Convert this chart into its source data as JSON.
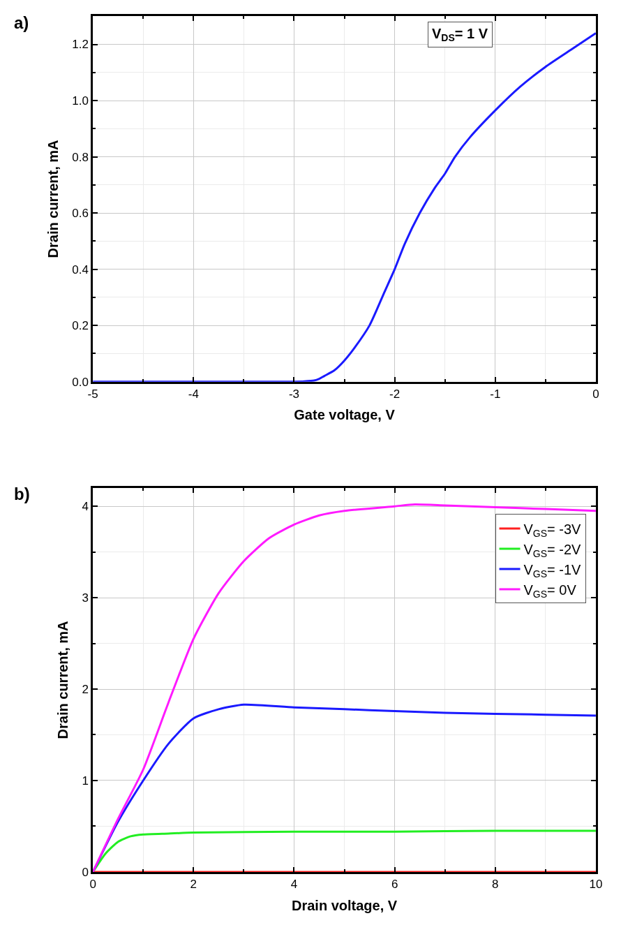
{
  "chart_data": [
    {
      "type": "line",
      "title": "a)",
      "xlabel": "Gate voltage, V",
      "ylabel": "Drain current, mA",
      "xlim": [
        -5,
        0
      ],
      "ylim": [
        0,
        1.3
      ],
      "xticks": [
        -5,
        -4,
        -3,
        -2,
        -1,
        0
      ],
      "yticks": [
        {
          "value": 0,
          "label": "0.0"
        },
        0.2,
        0.4,
        0.6,
        0.8,
        {
          "value": 1,
          "label": "1.0"
        },
        1.2
      ],
      "grid": true,
      "legend": false,
      "marker": "none",
      "line_style": "solid",
      "annotations": [
        "V$_{DS}$= 1 V"
      ],
      "series": [
        {
          "color": "#1a1aff",
          "x": [
            -5,
            -4,
            -3,
            -2.9,
            -2.8,
            -2.75,
            -2.7,
            -2.6,
            -2.5,
            -2.4,
            -2.25,
            -2.1,
            -2,
            -1.9,
            -1.75,
            -1.6,
            -1.5,
            -1.4,
            -1.25,
            -1,
            -0.75,
            -0.5,
            -0.25,
            0
          ],
          "values": [
            0,
            0,
            0,
            0.001,
            0.004,
            0.01,
            0.02,
            0.04,
            0.075,
            0.12,
            0.2,
            0.32,
            0.4,
            0.49,
            0.6,
            0.69,
            0.74,
            0.8,
            0.87,
            0.965,
            1.05,
            1.12,
            1.18,
            1.24
          ]
        }
      ]
    },
    {
      "type": "line",
      "title": "b)",
      "xlabel": "Drain voltage, V",
      "ylabel": "Drain current, mA",
      "xlim": [
        0,
        10
      ],
      "ylim": [
        0,
        4.2
      ],
      "xticks": [
        0,
        2,
        4,
        6,
        8,
        10
      ],
      "yticks": [
        0,
        1,
        2,
        3,
        4
      ],
      "grid": true,
      "legend": "top right",
      "marker": "none",
      "line_style": "solid",
      "series": [
        {
          "name": "V$_{GS}$= -3V",
          "color": "#ff2020",
          "x": [
            0,
            2,
            4,
            6,
            8,
            10
          ],
          "values": [
            0,
            0,
            0,
            0,
            0,
            0
          ]
        },
        {
          "name": "V$_{GS}$= -2V",
          "color": "#22ee22",
          "x": [
            0,
            0.25,
            0.5,
            0.75,
            1,
            1.5,
            2,
            4,
            6,
            8,
            10
          ],
          "values": [
            0,
            0.2,
            0.33,
            0.39,
            0.41,
            0.42,
            0.43,
            0.44,
            0.44,
            0.45,
            0.45
          ]
        },
        {
          "name": "V$_{GS}$= -1V",
          "color": "#1a1aff",
          "x": [
            0,
            0.5,
            1,
            1.5,
            2,
            2.5,
            3,
            4,
            5,
            6,
            7,
            8,
            9,
            10
          ],
          "values": [
            0,
            0.55,
            1.0,
            1.4,
            1.68,
            1.78,
            1.83,
            1.8,
            1.78,
            1.76,
            1.74,
            1.73,
            1.72,
            1.71
          ]
        },
        {
          "name": "V$_{GS}$= 0V",
          "color": "#ff1aff",
          "x": [
            0,
            0.5,
            1,
            1.5,
            2,
            2.5,
            3,
            3.5,
            4,
            4.5,
            5,
            6,
            6.4,
            7,
            8,
            9,
            10
          ],
          "values": [
            0,
            0.58,
            1.12,
            1.85,
            2.55,
            3.05,
            3.4,
            3.65,
            3.8,
            3.9,
            3.95,
            4.0,
            4.02,
            4.01,
            3.99,
            3.97,
            3.95
          ]
        }
      ]
    }
  ]
}
